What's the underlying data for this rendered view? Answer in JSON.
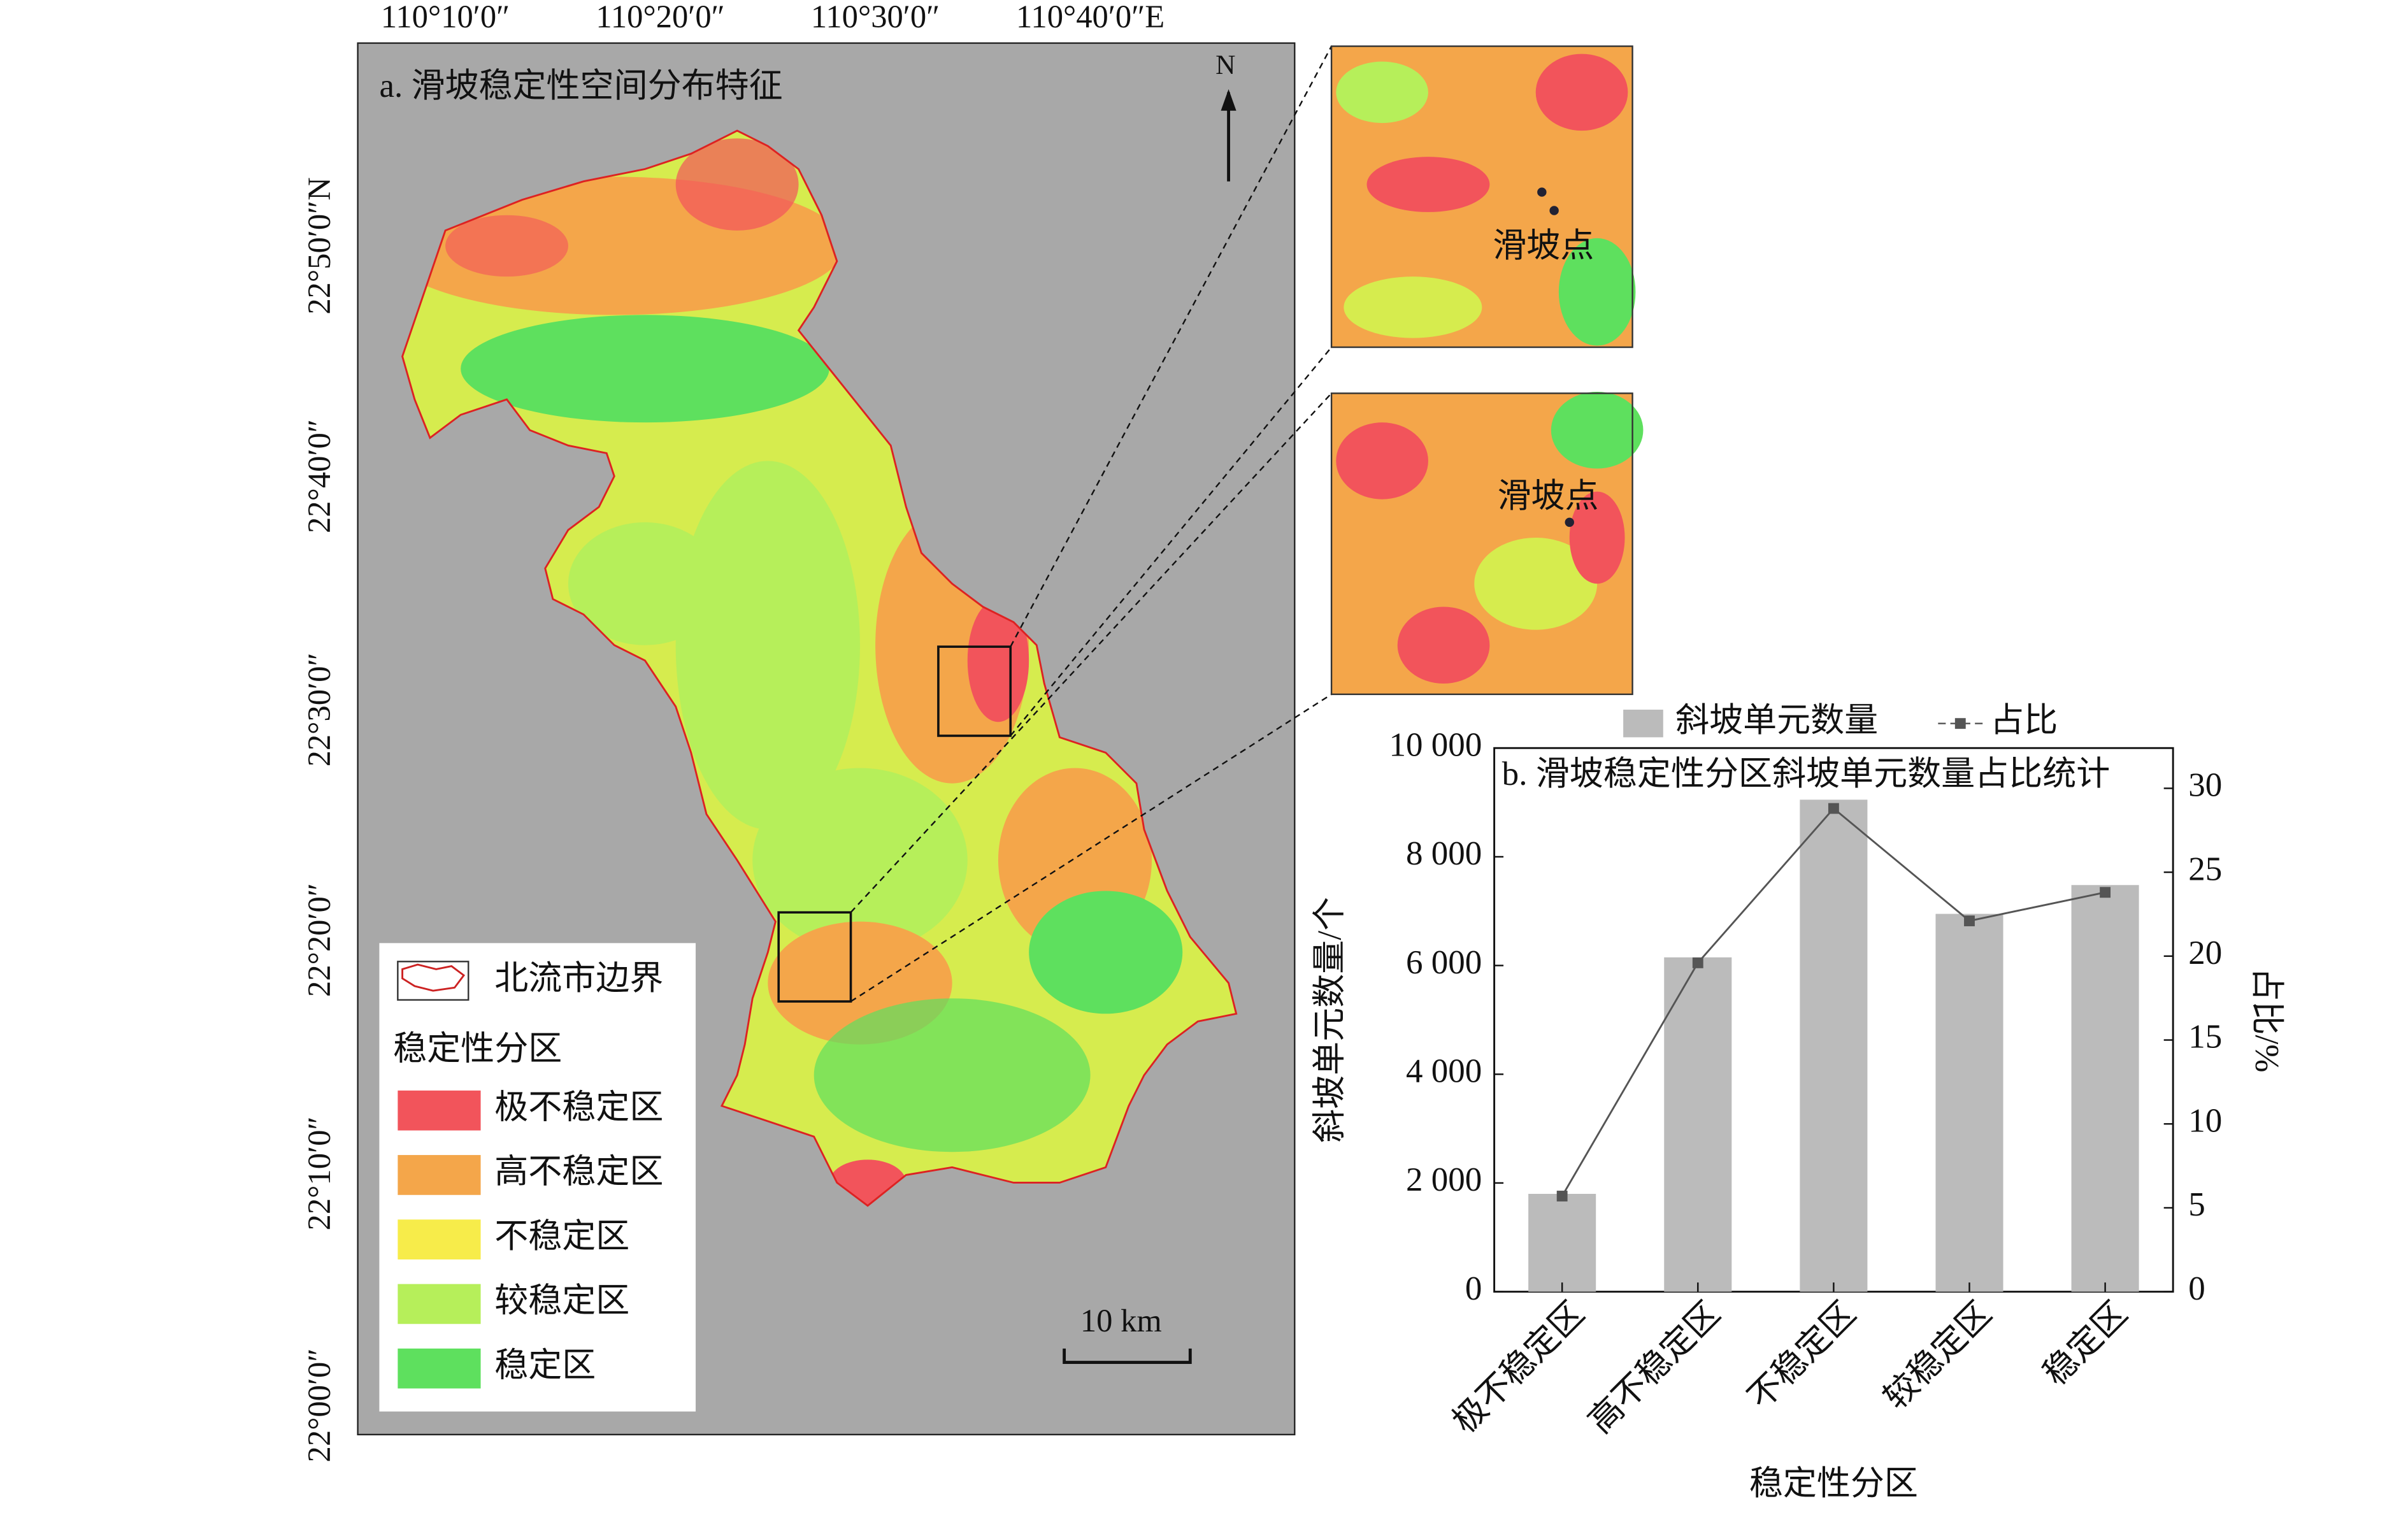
{
  "map": {
    "title": "a. 滑坡稳定性空间分布特征",
    "lon_labels": [
      "110°10′0″",
      "110°20′0″",
      "110°30′0″",
      "110°40′0″E"
    ],
    "lat_labels": [
      "22°50′0″N",
      "22°40′0″",
      "22°30′0″",
      "22°20′0″",
      "22°10′0″",
      "22°00′0″"
    ],
    "north": "N",
    "scale_bar": "10 km",
    "inset_labels": [
      "滑坡点",
      "滑坡点"
    ],
    "legend": {
      "boundary": "北流市边界",
      "title": "稳定性分区",
      "items": [
        {
          "label": "极不稳定区",
          "color": "#f2545b"
        },
        {
          "label": "高不稳定区",
          "color": "#f4a64a"
        },
        {
          "label": "不稳定区",
          "color": "#f7ec4a"
        },
        {
          "label": "较稳定区",
          "color": "#b6ef5a"
        },
        {
          "label": "稳定区",
          "color": "#5ee05e"
        }
      ]
    }
  },
  "chart_data": {
    "type": "bar",
    "title": "b. 滑坡稳定性分区斜坡单元数量占比统计",
    "categories": [
      "极不稳定区",
      "高不稳定区",
      "不稳定区",
      "较稳定区",
      "稳定区"
    ],
    "series": [
      {
        "name": "斜坡单元数量",
        "type": "bar",
        "color": "#bbbbbb",
        "values": [
          1800,
          6150,
          9050,
          6950,
          7480
        ]
      },
      {
        "name": "占比",
        "type": "line",
        "axis": "y2",
        "color": "#555555",
        "values": [
          5.7,
          19.6,
          28.8,
          22.1,
          23.8
        ]
      }
    ],
    "x_label": "稳定性分区",
    "y_label": "斜坡单元数量/个",
    "y2_label": "占比/%",
    "ylim": [
      0,
      10000
    ],
    "yticks": [
      0,
      {
        "value": 2000,
        "label": "2 000"
      },
      {
        "value": 4000,
        "label": "4 000"
      },
      {
        "value": 6000,
        "label": "6 000"
      },
      {
        "value": 8000,
        "label": "8 000"
      },
      {
        "value": 10000,
        "label": "10 000"
      }
    ],
    "y2lim": [
      0,
      32.4
    ],
    "y2ticks": [
      0,
      5,
      10,
      15,
      20,
      25,
      30
    ],
    "grid": false
  }
}
